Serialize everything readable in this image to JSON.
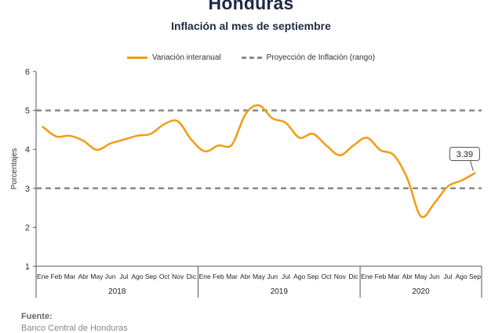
{
  "title": "Honduras",
  "subtitle": "Inflación al mes de septiembre",
  "legend": {
    "series_label": "Variación interanual",
    "band_label": "Proyección de Inflación (rango)"
  },
  "source": {
    "label": "Fuente:",
    "text": "Banco Central de Honduras"
  },
  "colors": {
    "series": "#f39c12",
    "band": "#8a8a8a",
    "axis": "#555555"
  },
  "chart_data": {
    "type": "line",
    "ylabel": "Porcentajes",
    "ylim": [
      1,
      6
    ],
    "yticks": [
      1,
      2,
      3,
      4,
      5,
      6
    ],
    "grid": false,
    "legend_position": "top",
    "month_labels": [
      "Ene",
      "Feb",
      "Mar",
      "Abr",
      "May",
      "Jun",
      "Jul",
      "Ago",
      "Sep",
      "Oct",
      "Nov",
      "Dic",
      "Ene",
      "Feb",
      "Mar",
      "Abr",
      "May",
      "Jun",
      "Jul",
      "Ago",
      "Sep",
      "Oct",
      "Nov",
      "Dic",
      "Ene",
      "Feb",
      "Mar",
      "Abr",
      "May",
      "Jun",
      "Jul",
      "Ago",
      "Sep"
    ],
    "years": [
      {
        "label": "2018",
        "months": 12
      },
      {
        "label": "2019",
        "months": 12
      },
      {
        "label": "2020",
        "months": 9
      }
    ],
    "series": [
      {
        "name": "Variación interanual",
        "values": [
          4.58,
          4.33,
          4.35,
          4.22,
          3.99,
          4.15,
          4.25,
          4.35,
          4.4,
          4.65,
          4.72,
          4.25,
          3.95,
          4.1,
          4.12,
          4.9,
          5.13,
          4.8,
          4.68,
          4.3,
          4.4,
          4.1,
          3.85,
          4.1,
          4.3,
          3.98,
          3.85,
          3.25,
          2.28,
          2.62,
          3.05,
          3.2,
          3.39
        ]
      }
    ],
    "band": {
      "name": "Proyección de Inflación (rango)",
      "lower": 3,
      "upper": 5
    },
    "annotation": {
      "index": 32,
      "text": "3.39"
    }
  }
}
